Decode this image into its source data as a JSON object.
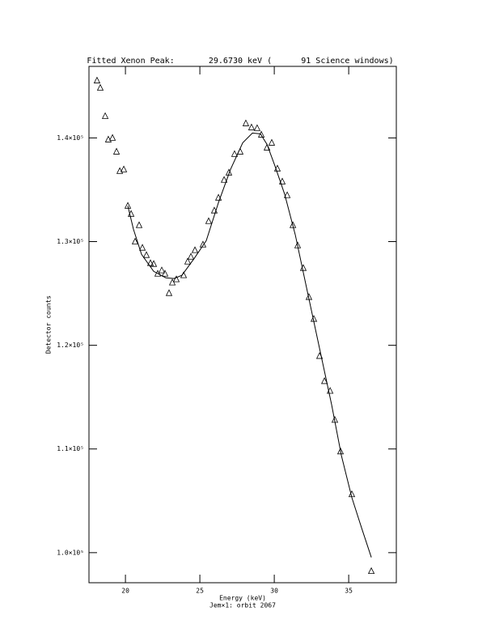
{
  "chart_data": {
    "type": "scatter",
    "title": "Fitted Xenon Peak:       29.6730 keV (      91 Science windows)",
    "x_label": "Energy (keV)",
    "subtitle": "Jem×1: orbit 2067",
    "y_label": "Detector counts",
    "xlim": [
      17.55,
      38.2
    ],
    "ylim": [
      97100,
      146900
    ],
    "xticks": [
      20,
      25,
      30,
      35
    ],
    "yticks": [
      {
        "value": 100000,
        "label": "1.0×10⁵"
      },
      {
        "value": 110000,
        "label": "1.1×10⁵"
      },
      {
        "value": 120000,
        "label": "1.2×10⁵"
      },
      {
        "value": 130000,
        "label": "1.3×10⁵"
      },
      {
        "value": 140000,
        "label": "1.4×10⁵"
      }
    ],
    "color": "#000000",
    "series": [
      {
        "marker": "triangle",
        "x": [
          18.09,
          18.31,
          18.64,
          18.85,
          19.13,
          19.4,
          19.62,
          19.89,
          20.16,
          20.38,
          20.65,
          20.92,
          21.14,
          21.41,
          21.68,
          21.9,
          22.17,
          22.44,
          22.66,
          22.93,
          23.15,
          23.42,
          23.91,
          24.18,
          24.4,
          24.67,
          25.21,
          25.59,
          25.97,
          26.25,
          26.63,
          26.95,
          27.33,
          27.71,
          28.09,
          28.47,
          28.85,
          29.13,
          29.51,
          29.83,
          30.21,
          30.54,
          30.87,
          31.25,
          31.57,
          31.95,
          32.33,
          32.66,
          33.04,
          33.37,
          33.75,
          34.07,
          34.45,
          35.21,
          36.52
        ],
        "values": [
          145530,
          144830,
          142100,
          139840,
          140000,
          138670,
          136800,
          136960,
          133450,
          132670,
          130000,
          131580,
          129400,
          128700,
          127920,
          127840,
          126900,
          127220,
          126900,
          125030,
          126050,
          126360,
          126750,
          128070,
          128540,
          129170,
          129710,
          131970,
          132990,
          134230,
          135950,
          136650,
          138440,
          138670,
          141400,
          141010,
          140940,
          140310,
          139060,
          139530,
          137040,
          135790,
          134470,
          131580,
          129630,
          127450,
          124650,
          122540,
          118960,
          116540,
          115600,
          112800,
          109760,
          105630,
          98220
        ]
      },
      {
        "marker": "line",
        "x": [
          20.16,
          20.54,
          21.08,
          21.9,
          22.71,
          23.26,
          23.8,
          24.62,
          25.43,
          26.25,
          27.06,
          27.88,
          28.53,
          29.07,
          29.51,
          30.05,
          30.7,
          31.41,
          32.22,
          33.04,
          33.85,
          34.51,
          35.21,
          35.86,
          36.52
        ],
        "values": [
          133450,
          131190,
          128770,
          127130,
          126510,
          126440,
          126750,
          128380,
          130090,
          133760,
          136960,
          139530,
          140470,
          140390,
          139380,
          137280,
          134550,
          130650,
          125190,
          119730,
          114270,
          109360,
          105310,
          102420,
          99540
        ]
      }
    ]
  }
}
